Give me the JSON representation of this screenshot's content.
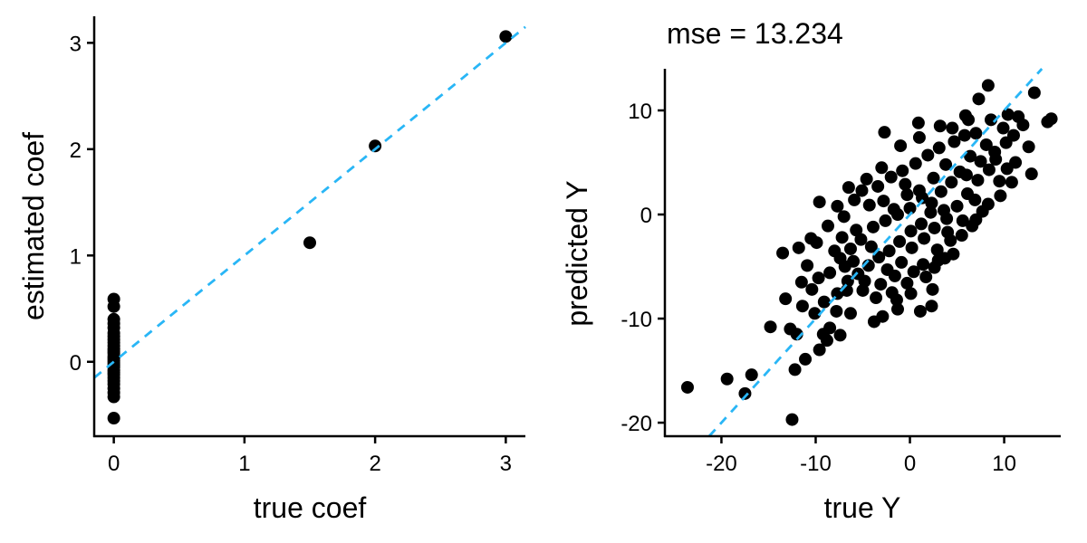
{
  "colors": {
    "points": "#000000",
    "reference_line": "#29B6F6",
    "axes": "#000000"
  },
  "chart_data": [
    {
      "type": "scatter",
      "title": "",
      "xlabel": "true coef",
      "ylabel": "estimated coef",
      "xlim": [
        -0.15,
        3.15
      ],
      "ylim": [
        -0.7,
        3.25
      ],
      "xticks": [
        0,
        1,
        2,
        3
      ],
      "yticks": [
        0,
        1,
        2,
        3
      ],
      "xtick_labels": [
        "0",
        "1",
        "2",
        "3"
      ],
      "ytick_labels": [
        "0",
        "1",
        "2",
        "3"
      ],
      "reference_line": {
        "style": "dashed",
        "slope": 1,
        "intercept": 0
      },
      "grid": false,
      "legend": "none",
      "points": [
        {
          "x": 3,
          "y": 3.06
        },
        {
          "x": 2,
          "y": 2.03
        },
        {
          "x": 1.5,
          "y": 1.12
        },
        {
          "x": 0,
          "y": 0.59
        },
        {
          "x": 0,
          "y": 0.52
        },
        {
          "x": 0,
          "y": 0.4
        },
        {
          "x": 0,
          "y": 0.36
        },
        {
          "x": 0,
          "y": 0.32
        },
        {
          "x": 0,
          "y": 0.27
        },
        {
          "x": 0,
          "y": 0.24
        },
        {
          "x": 0,
          "y": 0.21
        },
        {
          "x": 0,
          "y": 0.18
        },
        {
          "x": 0,
          "y": 0.15
        },
        {
          "x": 0,
          "y": 0.12
        },
        {
          "x": 0,
          "y": 0.1
        },
        {
          "x": 0,
          "y": 0.08
        },
        {
          "x": 0,
          "y": 0.05
        },
        {
          "x": 0,
          "y": 0.03
        },
        {
          "x": 0,
          "y": 0.01
        },
        {
          "x": 0,
          "y": -0.01
        },
        {
          "x": 0,
          "y": -0.03
        },
        {
          "x": 0,
          "y": -0.05
        },
        {
          "x": 0,
          "y": -0.08
        },
        {
          "x": 0,
          "y": -0.1
        },
        {
          "x": 0,
          "y": -0.12
        },
        {
          "x": 0,
          "y": -0.15
        },
        {
          "x": 0,
          "y": -0.18
        },
        {
          "x": 0,
          "y": -0.21
        },
        {
          "x": 0,
          "y": -0.25
        },
        {
          "x": 0,
          "y": -0.29
        },
        {
          "x": 0,
          "y": -0.33
        },
        {
          "x": 0,
          "y": -0.53
        }
      ]
    },
    {
      "type": "scatter",
      "title": "mse = 13.234",
      "xlabel": "true Y",
      "ylabel": "predicted Y",
      "xlim": [
        -26,
        16
      ],
      "ylim": [
        -21.3,
        14
      ],
      "xticks": [
        -20,
        -10,
        0,
        10
      ],
      "yticks": [
        -20,
        -10,
        0,
        10
      ],
      "xtick_labels": [
        "-20",
        "-10",
        "0",
        "10"
      ],
      "ytick_labels": [
        "-20",
        "-10",
        "0",
        "10"
      ],
      "reference_line": {
        "style": "dashed",
        "slope": 1,
        "intercept": 0
      },
      "grid": false,
      "legend": "none",
      "points": [
        {
          "x": -23.6,
          "y": -16.6
        },
        {
          "x": -19.4,
          "y": -15.8
        },
        {
          "x": -17.5,
          "y": -17.2
        },
        {
          "x": -16.8,
          "y": -15.4
        },
        {
          "x": -12.5,
          "y": -19.7
        },
        {
          "x": -14.8,
          "y": -10.8
        },
        {
          "x": -12.2,
          "y": -14.9
        },
        {
          "x": -11.1,
          "y": -13.9
        },
        {
          "x": -12.0,
          "y": -11.5
        },
        {
          "x": -9.6,
          "y": -13.0
        },
        {
          "x": -12.7,
          "y": -11.0
        },
        {
          "x": -13.2,
          "y": -8.1
        },
        {
          "x": -13.5,
          "y": -3.7
        },
        {
          "x": -11.8,
          "y": -3.2
        },
        {
          "x": -11.5,
          "y": -6.5
        },
        {
          "x": -9.6,
          "y": 1.2
        },
        {
          "x": -10.5,
          "y": -2.3
        },
        {
          "x": -7.7,
          "y": 0.8
        },
        {
          "x": -6.5,
          "y": 2.6
        },
        {
          "x": -5.1,
          "y": 2.3
        },
        {
          "x": -2.7,
          "y": 7.9
        },
        {
          "x": 0.9,
          "y": 8.8
        },
        {
          "x": 3.2,
          "y": 8.5
        },
        {
          "x": 4.5,
          "y": 8.3
        },
        {
          "x": 5.9,
          "y": 9.5
        },
        {
          "x": 6.2,
          "y": 9.1
        },
        {
          "x": 7.3,
          "y": 11.1
        },
        {
          "x": 8.3,
          "y": 12.4
        },
        {
          "x": 10.4,
          "y": 9.6
        },
        {
          "x": 11.5,
          "y": 9.4
        },
        {
          "x": 12.0,
          "y": 8.6
        },
        {
          "x": 13.2,
          "y": 11.7
        },
        {
          "x": 14.6,
          "y": 8.9
        },
        {
          "x": 15.0,
          "y": 9.2
        },
        {
          "x": 12.6,
          "y": 6.5
        },
        {
          "x": 12.9,
          "y": 3.9
        },
        {
          "x": 11.2,
          "y": 5.0
        },
        {
          "x": 10.3,
          "y": 4.4
        },
        {
          "x": 9.5,
          "y": 3.2
        },
        {
          "x": 9.6,
          "y": 1.8
        },
        {
          "x": 8.3,
          "y": 1.0
        },
        {
          "x": 7.7,
          "y": 0.3
        },
        {
          "x": 7.0,
          "y": -0.5
        },
        {
          "x": 6.6,
          "y": -1.1
        },
        {
          "x": 5.5,
          "y": -2.0
        },
        {
          "x": 4.6,
          "y": -3.8
        },
        {
          "x": 3.7,
          "y": -4.2
        },
        {
          "x": 2.6,
          "y": -5.1
        },
        {
          "x": 2.3,
          "y": -8.8
        },
        {
          "x": 1.1,
          "y": -9.3
        },
        {
          "x": -1.3,
          "y": -9.1
        },
        {
          "x": -3.6,
          "y": -8.0
        },
        {
          "x": -5.0,
          "y": -7.3
        },
        {
          "x": -2.9,
          "y": -9.8
        },
        {
          "x": -3.8,
          "y": -10.3
        },
        {
          "x": -6.3,
          "y": -9.5
        },
        {
          "x": -7.8,
          "y": -9.3
        },
        {
          "x": -8.5,
          "y": -10.9
        },
        {
          "x": -9.2,
          "y": -11.5
        },
        {
          "x": -8.8,
          "y": -12.1
        },
        {
          "x": -7.4,
          "y": -11.6
        },
        {
          "x": -6.7,
          "y": -7.3
        },
        {
          "x": -4.8,
          "y": -6.4
        },
        {
          "x": -3.1,
          "y": -6.7
        },
        {
          "x": -1.6,
          "y": -5.9
        },
        {
          "x": -0.3,
          "y": -6.6
        },
        {
          "x": 0.4,
          "y": -5.5
        },
        {
          "x": 1.7,
          "y": -6.0
        },
        {
          "x": 2.9,
          "y": -3.4
        },
        {
          "x": 4.0,
          "y": -1.7
        },
        {
          "x": 3.6,
          "y": 0.4
        },
        {
          "x": 2.3,
          "y": 1.1
        },
        {
          "x": 1.0,
          "y": 2.3
        },
        {
          "x": -0.3,
          "y": 1.9
        },
        {
          "x": -1.7,
          "y": 0.5
        },
        {
          "x": -2.6,
          "y": -0.6
        },
        {
          "x": -3.9,
          "y": -1.2
        },
        {
          "x": -5.2,
          "y": -2.4
        },
        {
          "x": -6.3,
          "y": -3.3
        },
        {
          "x": -7.4,
          "y": -4.2
        },
        {
          "x": -8.5,
          "y": -5.6
        },
        {
          "x": -9.7,
          "y": -6.1
        },
        {
          "x": -10.4,
          "y": -7.2
        },
        {
          "x": -11.4,
          "y": -8.8
        },
        {
          "x": -10.9,
          "y": -4.9
        },
        {
          "x": -9.9,
          "y": -2.7
        },
        {
          "x": -8.7,
          "y": -1.1
        },
        {
          "x": -7.0,
          "y": -0.2
        },
        {
          "x": -5.9,
          "y": 1.4
        },
        {
          "x": -4.3,
          "y": 0.9
        },
        {
          "x": -3.4,
          "y": 2.7
        },
        {
          "x": -2.0,
          "y": 3.6
        },
        {
          "x": -0.8,
          "y": 4.2
        },
        {
          "x": 0.6,
          "y": 4.9
        },
        {
          "x": 1.9,
          "y": 5.7
        },
        {
          "x": 3.1,
          "y": 6.4
        },
        {
          "x": 4.7,
          "y": 7.0
        },
        {
          "x": 5.8,
          "y": 7.6
        },
        {
          "x": 7.0,
          "y": 7.8
        },
        {
          "x": 8.1,
          "y": 6.7
        },
        {
          "x": 9.1,
          "y": 5.3
        },
        {
          "x": 10.2,
          "y": 6.9
        },
        {
          "x": 11.0,
          "y": 7.6
        },
        {
          "x": 9.9,
          "y": 8.3
        },
        {
          "x": 8.6,
          "y": 9.1
        },
        {
          "x": 6.4,
          "y": 5.6
        },
        {
          "x": 5.3,
          "y": 4.1
        },
        {
          "x": 4.4,
          "y": 3.1
        },
        {
          "x": 3.3,
          "y": 2.2
        },
        {
          "x": 2.2,
          "y": 0.2
        },
        {
          "x": 1.2,
          "y": -0.9
        },
        {
          "x": 0.1,
          "y": -1.6
        },
        {
          "x": -1.1,
          "y": -2.6
        },
        {
          "x": -2.2,
          "y": -3.5
        },
        {
          "x": -3.3,
          "y": -4.1
        },
        {
          "x": -4.4,
          "y": -4.9
        },
        {
          "x": -5.5,
          "y": -5.7
        },
        {
          "x": -6.6,
          "y": -6.4
        },
        {
          "x": -7.7,
          "y": -7.6
        },
        {
          "x": -9.1,
          "y": -8.4
        },
        {
          "x": -1.9,
          "y": -7.5
        },
        {
          "x": -0.9,
          "y": -4.6
        },
        {
          "x": 0.2,
          "y": -3.2
        },
        {
          "x": 1.5,
          "y": -2.3
        },
        {
          "x": 2.6,
          "y": -1.3
        },
        {
          "x": 3.9,
          "y": -0.4
        },
        {
          "x": 5.0,
          "y": 0.8
        },
        {
          "x": 6.1,
          "y": 2.0
        },
        {
          "x": 7.2,
          "y": 3.3
        },
        {
          "x": 8.4,
          "y": 4.3
        },
        {
          "x": 6.9,
          "y": 1.4
        },
        {
          "x": 5.6,
          "y": -0.6
        },
        {
          "x": 4.3,
          "y": -2.5
        },
        {
          "x": 3.0,
          "y": -4.4
        },
        {
          "x": 1.4,
          "y": -4.8
        },
        {
          "x": 0.1,
          "y": -7.6
        },
        {
          "x": -1.4,
          "y": -8.2
        },
        {
          "x": -4.1,
          "y": -3.1
        },
        {
          "x": -5.7,
          "y": -1.5
        },
        {
          "x": -7.2,
          "y": -2.2
        },
        {
          "x": -8.0,
          "y": -3.5
        },
        {
          "x": -2.8,
          "y": 1.3
        },
        {
          "x": -1.3,
          "y": 0.0
        },
        {
          "x": 0.0,
          "y": 0.6
        },
        {
          "x": 1.3,
          "y": 1.6
        },
        {
          "x": 2.5,
          "y": 3.5
        },
        {
          "x": -0.5,
          "y": 2.9
        },
        {
          "x": -3.0,
          "y": 4.5
        },
        {
          "x": -4.6,
          "y": 3.4
        },
        {
          "x": -6.0,
          "y": -4.5
        },
        {
          "x": -2.4,
          "y": -5.3
        },
        {
          "x": 3.8,
          "y": 4.8
        },
        {
          "x": 6.0,
          "y": 3.8
        },
        {
          "x": 7.5,
          "y": 5.1
        },
        {
          "x": 9.0,
          "y": 6.0
        },
        {
          "x": 10.8,
          "y": 3.1
        },
        {
          "x": -1.0,
          "y": 6.6
        },
        {
          "x": 1.0,
          "y": 7.4
        },
        {
          "x": 2.4,
          "y": -7.2
        },
        {
          "x": -6.9,
          "y": -5.0
        },
        {
          "x": -10.1,
          "y": -9.5
        }
      ]
    }
  ]
}
